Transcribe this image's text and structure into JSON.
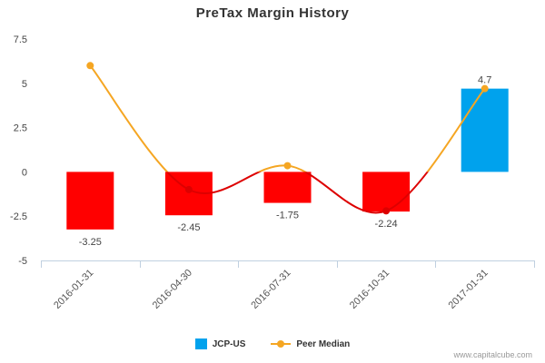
{
  "chart_data": {
    "type": "bar",
    "title": "PreTax Margin History",
    "categories": [
      "2016-01-31",
      "2016-04-30",
      "2016-07-31",
      "2016-10-31",
      "2017-01-31"
    ],
    "series": [
      {
        "name": "JCP-US",
        "type": "bar",
        "values": [
          -3.25,
          -2.45,
          -1.75,
          -2.24,
          4.7
        ],
        "labels": [
          "-3.25",
          "-2.45",
          "-1.75",
          "-2.24",
          "4.7"
        ],
        "positive_color": "#00a2ed",
        "negative_color": "#ff0000"
      },
      {
        "name": "Peer Median",
        "type": "line",
        "values": [
          6.0,
          -1.0,
          0.35,
          -2.2,
          4.7
        ],
        "color": "#f5a623",
        "below_zero_color": "#dd0000"
      }
    ],
    "y_ticks": [
      "7.5",
      "5",
      "2.5",
      "0",
      "-2.5",
      "-5"
    ],
    "y_tick_values": [
      7.5,
      5,
      2.5,
      0,
      -2.5,
      -5
    ],
    "ylim": [
      -5,
      7.5
    ],
    "grid": false,
    "legend_position": "bottom"
  },
  "credit": "www.capitalcube.com"
}
